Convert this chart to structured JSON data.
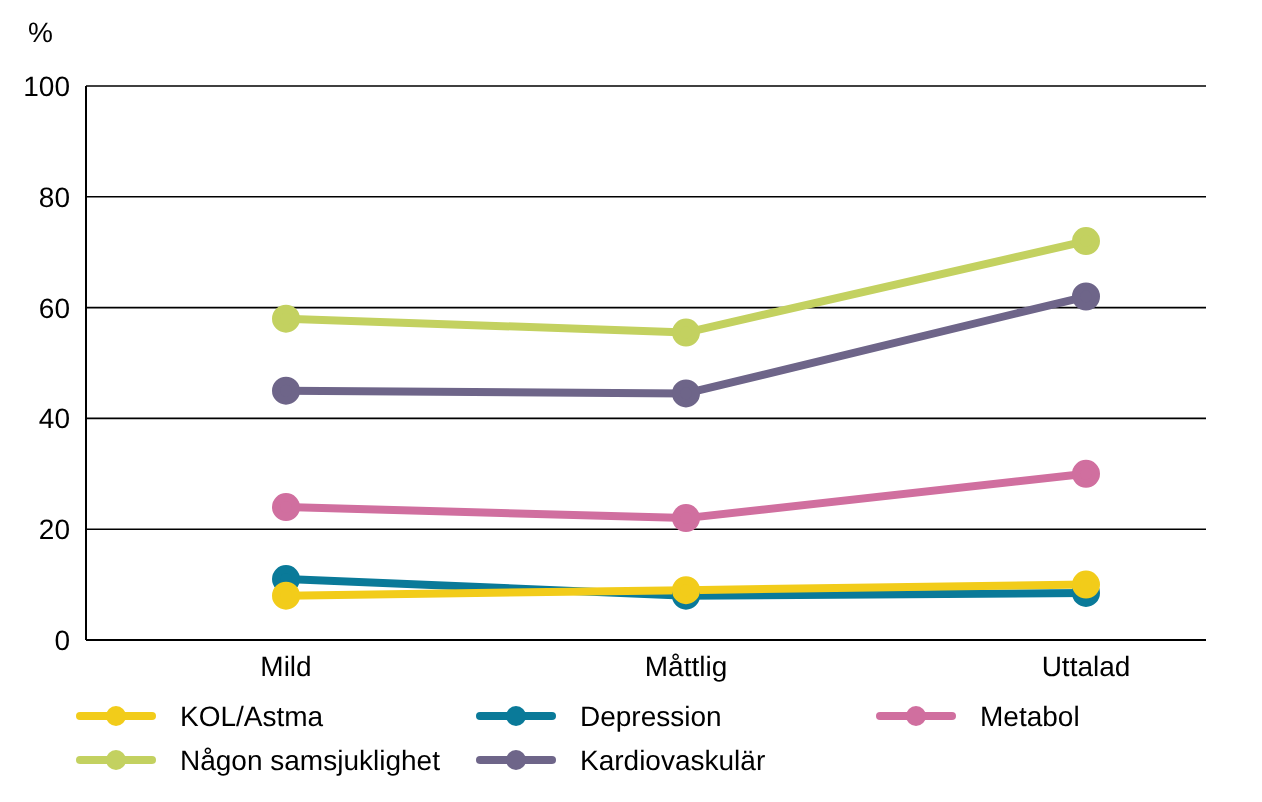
{
  "chart_data": {
    "type": "line",
    "ylabel": "%",
    "categories": [
      "Mild",
      "Måttlig",
      "Uttalad"
    ],
    "series": [
      {
        "name": "KOL/Astma",
        "color": "#f2cc1a",
        "values": [
          8,
          9,
          10
        ]
      },
      {
        "name": "Depression",
        "color": "#0a7a99",
        "values": [
          11,
          8,
          8.5
        ]
      },
      {
        "name": "Metabol",
        "color": "#d06f9f",
        "values": [
          24,
          22,
          30
        ]
      },
      {
        "name": "Någon samsjuklighet",
        "color": "#c3d160",
        "values": [
          58,
          55.5,
          72
        ]
      },
      {
        "name": "Kardiovaskulär",
        "color": "#6e6589",
        "values": [
          45,
          44.5,
          62
        ]
      }
    ],
    "ylim": [
      0,
      100
    ],
    "yticks": [
      0,
      20,
      40,
      60,
      80,
      100
    ],
    "grid": "y",
    "legend": "bottom",
    "marker": "circle",
    "line_style": "solid"
  }
}
